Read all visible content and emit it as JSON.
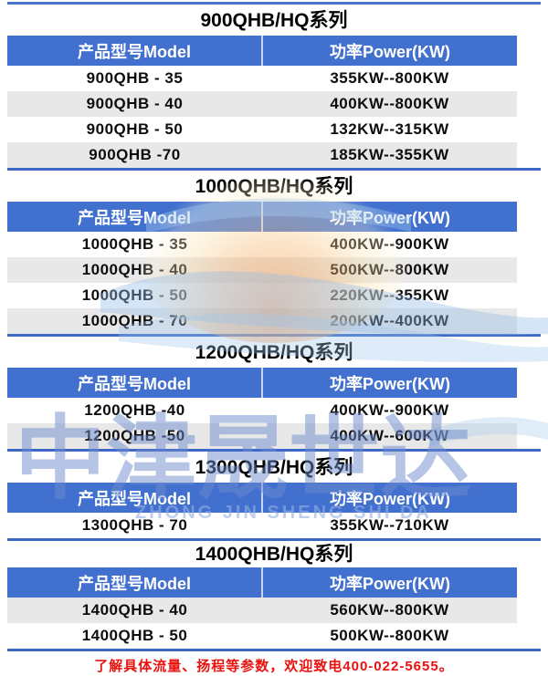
{
  "table_headers": {
    "model": "产品型号Model",
    "power": "功率Power(KW)"
  },
  "sections": [
    {
      "title": "900QHB/HQ系列",
      "rows": [
        {
          "model": "900QHB - 35",
          "power": "355KW--800KW",
          "shaded": false
        },
        {
          "model": "900QHB - 40",
          "power": "400KW--800KW",
          "shaded": true
        },
        {
          "model": "900QHB - 50",
          "power": "132KW--315KW",
          "shaded": false
        },
        {
          "model": "900QHB -70",
          "power": "185KW--355KW",
          "shaded": true
        }
      ]
    },
    {
      "title": "1000QHB/HQ系列",
      "rows": [
        {
          "model": "1000QHB - 35",
          "power": "400KW--900KW",
          "shaded": false
        },
        {
          "model": "1000QHB - 40",
          "power": "500KW--800KW",
          "shaded": true
        },
        {
          "model": "1000QHB - 50",
          "power": "220KW--355KW",
          "shaded": false
        },
        {
          "model": "1000QHB - 70",
          "power": "200KW--400KW",
          "shaded": true
        }
      ]
    },
    {
      "title": "1200QHB/HQ系列",
      "rows": [
        {
          "model": "1200QHB -40",
          "power": "400KW--900KW",
          "shaded": false
        },
        {
          "model": "1200QHB -50",
          "power": "400KW--600KW",
          "shaded": true
        }
      ]
    },
    {
      "title": "1300QHB/HQ系列",
      "rows": [
        {
          "model": "1300QHB - 70",
          "power": "355KW--710KW",
          "shaded": false
        }
      ]
    },
    {
      "title": "1400QHB/HQ系列",
      "rows": [
        {
          "model": "1400QHB - 40",
          "power": "560KW--800KW",
          "shaded": true
        },
        {
          "model": "1400QHB - 50",
          "power": "500KW--800KW",
          "shaded": false
        }
      ]
    }
  ],
  "notice": "了解具体流量、扬程等参数，欢迎致电400-022-5655。",
  "watermark": {
    "cn": "中津晟世达",
    "en": "ZHONG JIN SHENG SHI DA"
  },
  "colors": {
    "header_blue": "#4170cf",
    "separator_blue": "#3d68c8",
    "shaded_row_gray": "#e8e8e8",
    "notice_red": "#e8110d",
    "watermark_blue": "#6e8ccd",
    "logo_orange": "#f48c3c"
  }
}
